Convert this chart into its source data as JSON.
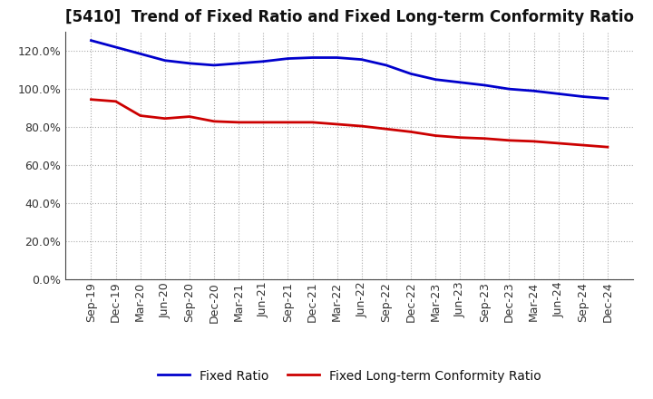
{
  "title": "[5410]  Trend of Fixed Ratio and Fixed Long-term Conformity Ratio",
  "x_labels": [
    "Sep-19",
    "Dec-19",
    "Mar-20",
    "Jun-20",
    "Sep-20",
    "Dec-20",
    "Mar-21",
    "Jun-21",
    "Sep-21",
    "Dec-21",
    "Mar-22",
    "Jun-22",
    "Sep-22",
    "Dec-22",
    "Mar-23",
    "Jun-23",
    "Sep-23",
    "Dec-23",
    "Mar-24",
    "Jun-24",
    "Sep-24",
    "Dec-24"
  ],
  "fixed_ratio": [
    125.5,
    122.0,
    118.5,
    115.0,
    113.5,
    112.5,
    113.5,
    114.5,
    116.0,
    116.5,
    116.5,
    115.5,
    112.5,
    108.0,
    105.0,
    103.5,
    102.0,
    100.0,
    99.0,
    97.5,
    96.0,
    95.0
  ],
  "fixed_lt_ratio": [
    94.5,
    93.5,
    86.0,
    84.5,
    85.5,
    83.0,
    82.5,
    82.5,
    82.5,
    82.5,
    81.5,
    80.5,
    79.0,
    77.5,
    75.5,
    74.5,
    74.0,
    73.0,
    72.5,
    71.5,
    70.5,
    69.5
  ],
  "fixed_ratio_color": "#0000cc",
  "fixed_lt_ratio_color": "#cc0000",
  "background_color": "#ffffff",
  "grid_color": "#888888",
  "ylim": [
    0,
    130
  ],
  "yticks": [
    0,
    20,
    40,
    60,
    80,
    100,
    120
  ],
  "legend_fixed_ratio": "Fixed Ratio",
  "legend_fixed_lt_ratio": "Fixed Long-term Conformity Ratio",
  "line_width": 2.0,
  "title_fontsize": 12,
  "tick_fontsize": 9,
  "legend_fontsize": 10
}
